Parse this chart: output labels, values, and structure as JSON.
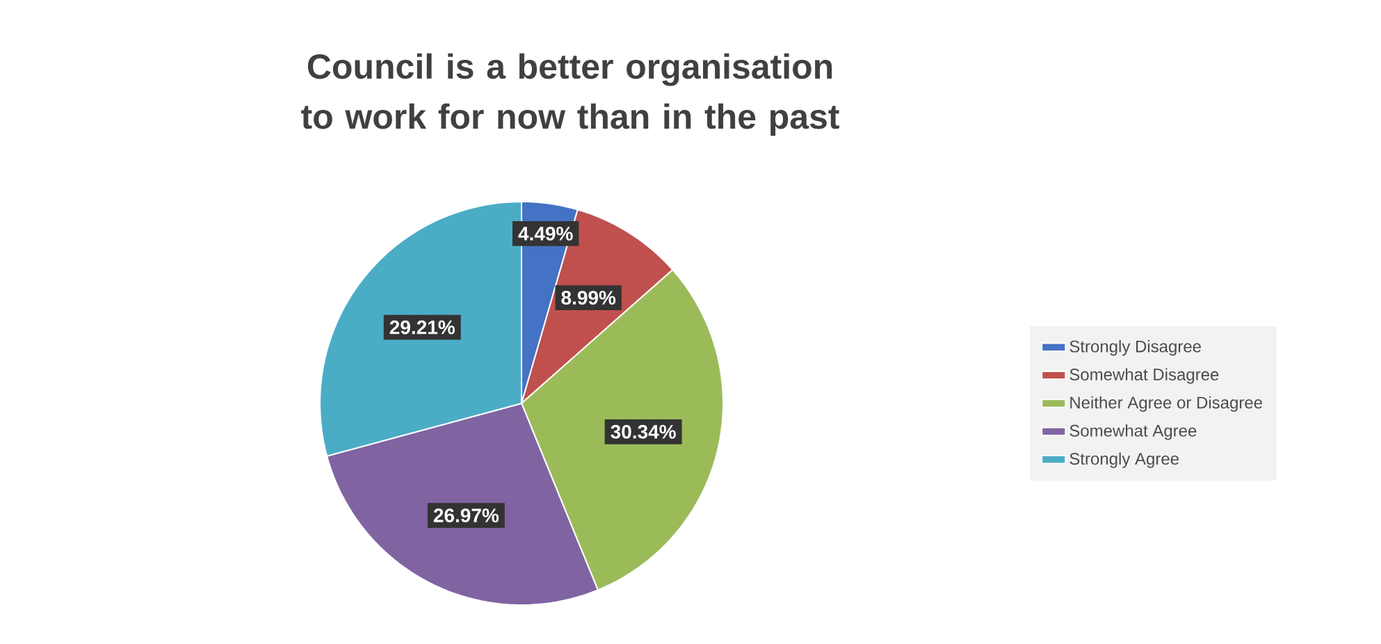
{
  "chart_data": {
    "type": "pie",
    "title": "Council is a better organisation to work for now than in the past",
    "categories": [
      "Strongly Disagree",
      "Somewhat Disagree",
      "Neither Agree or Disagree",
      "Somewhat Agree",
      "Strongly Agree"
    ],
    "values": [
      4.49,
      8.99,
      30.34,
      26.97,
      29.21
    ],
    "value_labels": [
      "4.49%",
      "8.99%",
      "30.34%",
      "26.97%",
      "29.21%"
    ],
    "colors": [
      "#4472c4",
      "#c0504d",
      "#9bbb59",
      "#8064a2",
      "#4bacc6"
    ],
    "legend": "right"
  }
}
